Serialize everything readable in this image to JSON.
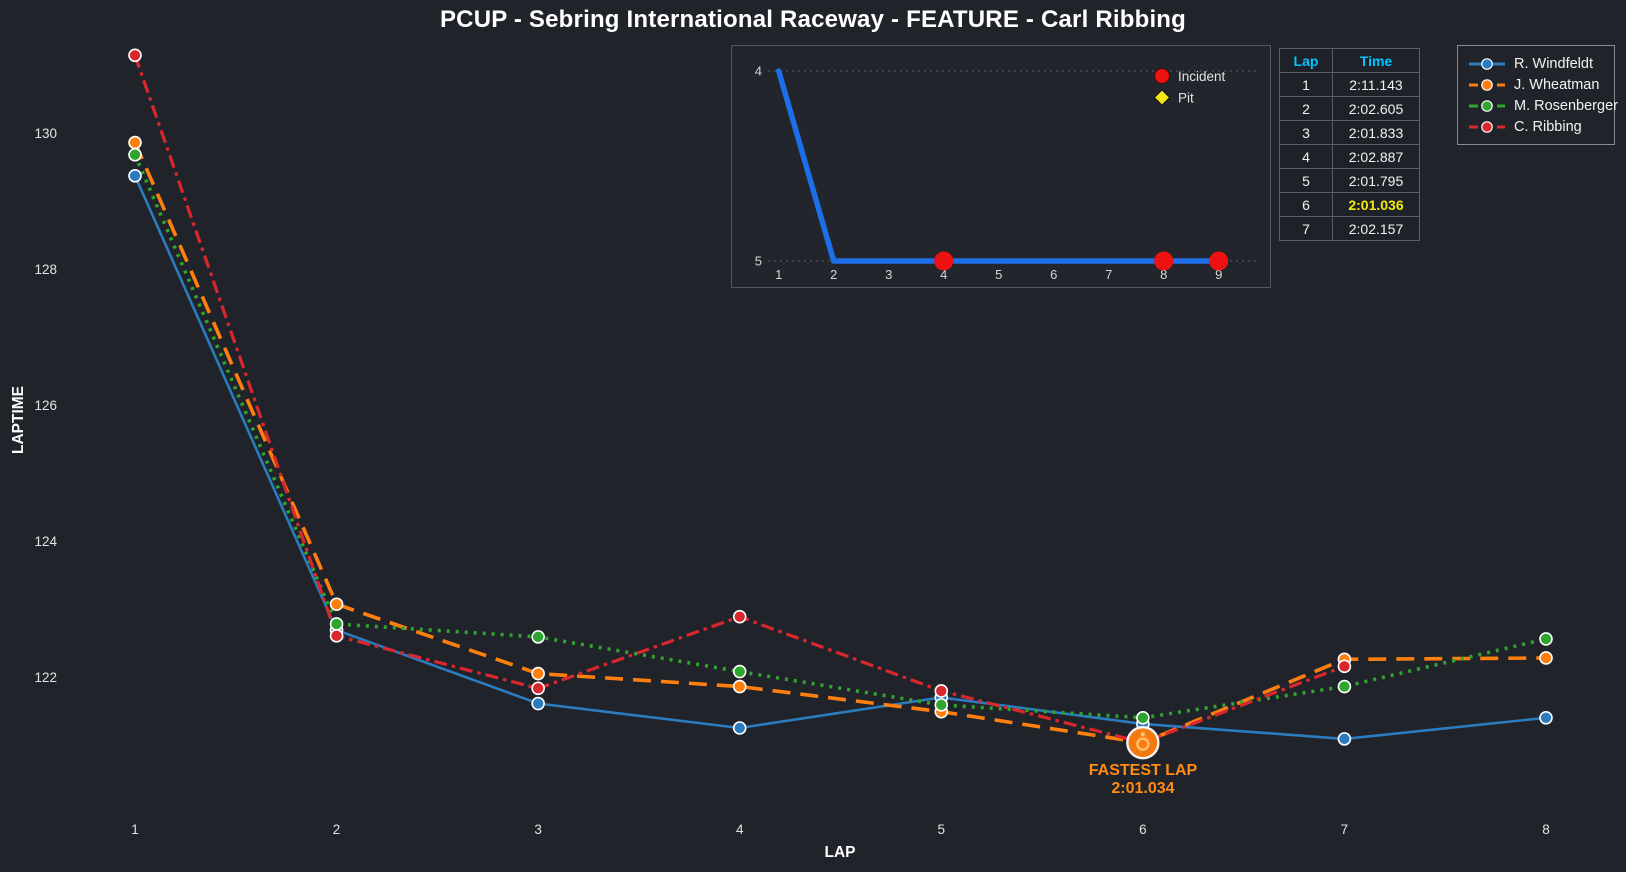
{
  "title": "PCUP - Sebring International Raceway - FEATURE - Carl Ribbing",
  "colors": {
    "background": "#20232a",
    "panel_border": "#53575e",
    "tick_text": "#e4e4e4",
    "table_header_cyan": "#00c4ff",
    "fastest_yellow": "#f2ea0a",
    "annotation_orange": "#ff8c14",
    "incident_red": "#ee1111",
    "pit_yellow": "#f5e616",
    "inset_line_blue": "#1c6fe8"
  },
  "chart_data": [
    {
      "type": "line",
      "title": "PCUP - Sebring International Raceway - FEATURE - Carl Ribbing",
      "xlabel": "LAP",
      "ylabel": "LAPTIME",
      "x": [
        1,
        2,
        3,
        4,
        5,
        6,
        7,
        8
      ],
      "yticks": [
        122,
        124,
        126,
        128,
        130
      ],
      "ylim": [
        119.5,
        132.0
      ],
      "grid": false,
      "legend_position": "top-right",
      "series": [
        {
          "name": "R. Windfeldt",
          "color": "#2b7bbf",
          "dash": "solid",
          "values": [
            129.37,
            122.69,
            121.61,
            121.25,
            121.7,
            121.31,
            121.09,
            121.4
          ]
        },
        {
          "name": "J. Wheatman",
          "color": "#ff7f0e",
          "dash": "dashed",
          "values": [
            129.86,
            123.07,
            122.05,
            121.86,
            121.49,
            121.034,
            122.26,
            122.28
          ]
        },
        {
          "name": "M. Rosenberger",
          "color": "#2fa52f",
          "dash": "dotted",
          "values": [
            129.68,
            122.78,
            122.59,
            122.08,
            121.59,
            121.4,
            121.86,
            122.56
          ]
        },
        {
          "name": "C. Ribbing",
          "color": "#d9272e",
          "dash": "dashdot",
          "values": [
            131.143,
            122.605,
            121.833,
            122.887,
            121.795,
            121.036,
            122.157,
            null
          ]
        }
      ],
      "annotation": {
        "label": "FASTEST LAP",
        "value": "2:01.034",
        "lap": 6,
        "laptime": 121.034,
        "series": "J. Wheatman"
      }
    },
    {
      "type": "line",
      "name": "position-inset",
      "xlabel": "",
      "ylabel": "",
      "x": [
        1,
        2,
        3,
        4,
        5,
        6,
        7,
        8,
        9
      ],
      "yticks": [
        4,
        5
      ],
      "values": [
        4,
        5,
        5,
        5,
        5,
        5,
        5,
        5,
        5
      ],
      "incident_laps": [
        4,
        8,
        9
      ],
      "pit_laps": [],
      "legend": [
        {
          "label": "Incident",
          "marker": "red-circle"
        },
        {
          "label": "Pit",
          "marker": "yellow-diamond"
        }
      ]
    }
  ],
  "laptime_table": {
    "headers": [
      "Lap",
      "Time"
    ],
    "rows": [
      [
        "1",
        "2:11.143"
      ],
      [
        "2",
        "2:02.605"
      ],
      [
        "3",
        "2:01.833"
      ],
      [
        "4",
        "2:02.887"
      ],
      [
        "5",
        "2:01.795"
      ],
      [
        "6",
        "2:01.036"
      ],
      [
        "7",
        "2:02.157"
      ]
    ],
    "highlight_row_index": 5
  }
}
